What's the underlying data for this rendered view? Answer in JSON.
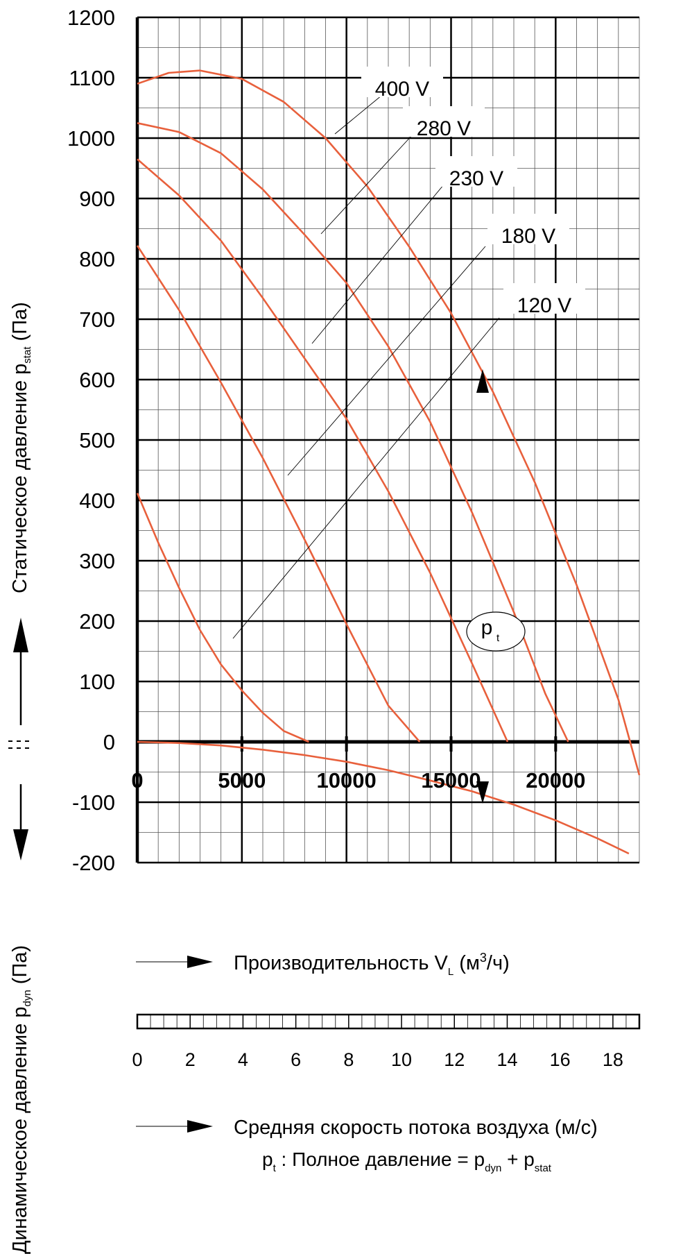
{
  "chart_data": {
    "type": "line",
    "xlim": [
      0,
      24000
    ],
    "ylim": [
      -200,
      1200
    ],
    "x_ticks": [
      "0",
      "5000",
      "10000",
      "15000",
      "20000"
    ],
    "x_tick_values": [
      0,
      5000,
      10000,
      15000,
      20000
    ],
    "y_ticks": [
      "1200",
      "1100",
      "1000",
      "900",
      "800",
      "700",
      "600",
      "500",
      "400",
      "300",
      "200",
      "100",
      "0",
      "-100",
      "-200"
    ],
    "y_tick_values": [
      1200,
      1100,
      1000,
      900,
      800,
      700,
      600,
      500,
      400,
      300,
      200,
      100,
      0,
      -100,
      -200
    ],
    "ylabel_static": "Статическое давление p",
    "ylabel_static_sub": "stat",
    "ylabel_static_unit": " (Па)",
    "ylabel_dynamic": "Динамическое давление p",
    "ylabel_dynamic_sub": "dyn",
    "ylabel_dynamic_unit": " (Па)",
    "xlabel_flow": "Производительность V",
    "xlabel_flow_sub": "L",
    "xlabel_flow_unit": " (м",
    "xlabel_flow_sup": "3",
    "xlabel_flow_unit_end": "/ч)",
    "velocity_scale": {
      "ticks": [
        "0",
        "2",
        "4",
        "6",
        "8",
        "10",
        "12",
        "14",
        "16",
        "18"
      ],
      "tick_values": [
        0,
        2,
        4,
        6,
        8,
        10,
        12,
        14,
        16,
        18
      ],
      "max": 19,
      "label": "Средняя скорость потока воздуха (м/с)"
    },
    "pt_marker": {
      "main": "p",
      "sub": "t"
    },
    "caption": {
      "p": "p",
      "t": "t",
      "mid": " : Полное давление = p",
      "dyn": "dyn",
      "plus": " + p",
      "stat": "stat"
    },
    "series": [
      {
        "name": "400 V",
        "x": [
          0,
          1500,
          3000,
          5000,
          7000,
          9000,
          11000,
          13000,
          15000,
          17000,
          19000,
          21000,
          23000,
          24000
        ],
        "values": [
          1090,
          1108,
          1112,
          1098,
          1060,
          1000,
          920,
          820,
          710,
          580,
          430,
          260,
          70,
          -55
        ]
      },
      {
        "name": "280 V",
        "x": [
          0,
          2000,
          4000,
          6000,
          8000,
          10000,
          12000,
          14000,
          16000,
          18000,
          19500,
          20600
        ],
        "values": [
          1025,
          1010,
          975,
          915,
          840,
          760,
          655,
          530,
          380,
          215,
          80,
          0
        ]
      },
      {
        "name": "230 V",
        "x": [
          0,
          2000,
          4000,
          6000,
          8000,
          10000,
          12000,
          14000,
          16000,
          17700
        ],
        "values": [
          965,
          905,
          830,
          735,
          635,
          535,
          415,
          280,
          130,
          0
        ]
      },
      {
        "name": "180 V",
        "x": [
          0,
          2000,
          4000,
          6000,
          8000,
          10000,
          12000,
          13500
        ],
        "values": [
          822,
          715,
          595,
          470,
          335,
          195,
          60,
          0
        ]
      },
      {
        "name": "120 V",
        "x": [
          0,
          1000,
          2000,
          3000,
          4000,
          5000,
          6000,
          7000,
          8200
        ],
        "values": [
          412,
          330,
          255,
          185,
          128,
          85,
          48,
          18,
          0
        ]
      },
      {
        "name": "p_dyn",
        "x": [
          0,
          2000,
          4000,
          6000,
          8000,
          10000,
          12000,
          14000,
          16000,
          18000,
          20000,
          22000,
          23500
        ],
        "values": [
          0,
          -2,
          -6,
          -13,
          -22,
          -33,
          -47,
          -64,
          -82,
          -104,
          -130,
          -160,
          -185
        ]
      }
    ],
    "voltage_labels": [
      "400 V",
      "280 V",
      "230 V",
      "180 V",
      "120 V"
    ]
  },
  "colors": {
    "curve": "#e8603c",
    "grid_major": "#000000",
    "grid_minor": "#555555",
    "label_bg": "#ffffff"
  }
}
